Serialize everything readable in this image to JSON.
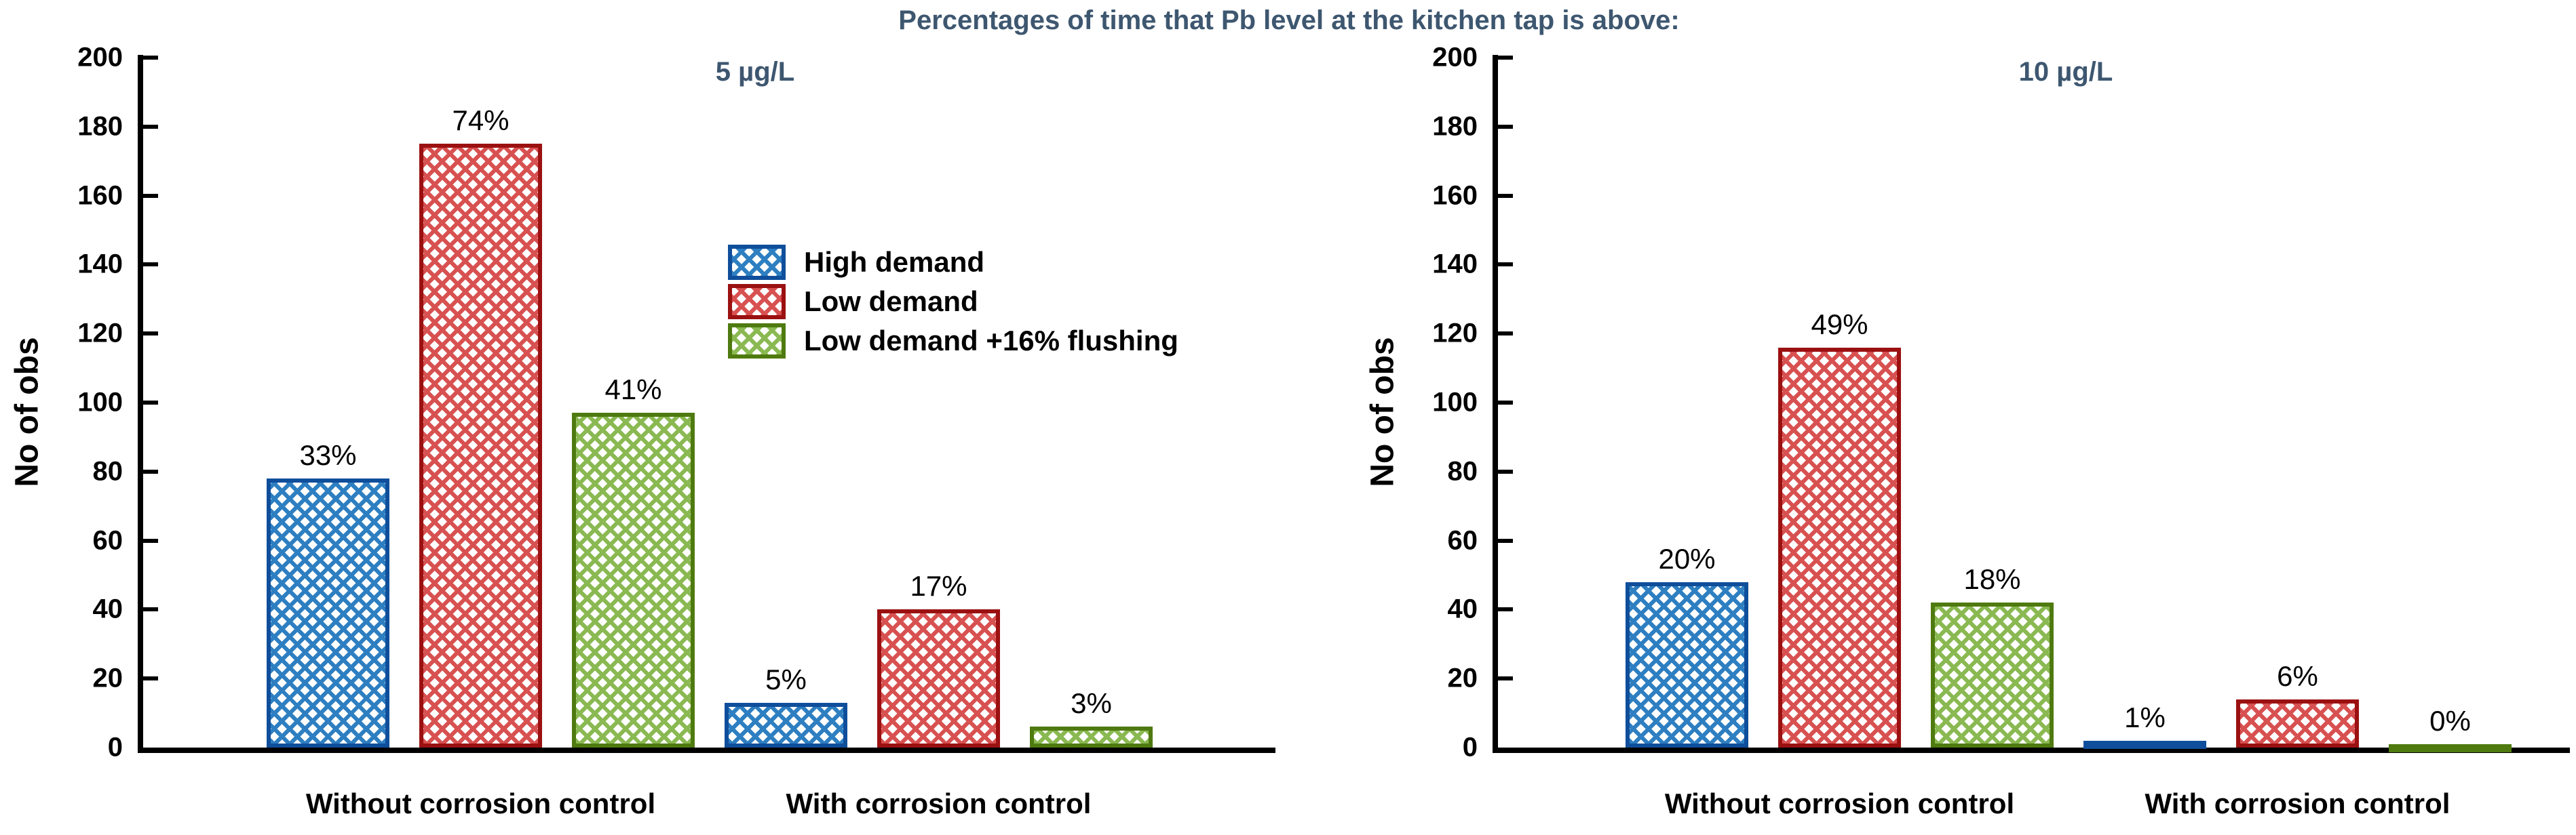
{
  "title": {
    "text": "Percentages of time that Pb level at the kitchen tap is above:",
    "color": "#3e5770"
  },
  "chart_data": [
    {
      "type": "bar",
      "title": "5 µg/L",
      "ylabel": "No of obs",
      "ylim": [
        0,
        200
      ],
      "ytick_step": 20,
      "grid": false,
      "legend_visible": true,
      "legend_position": "upper right inside plot",
      "categories": [
        "Without corrosion control",
        "With corrosion control"
      ],
      "series": [
        {
          "name": "High demand",
          "values": [
            78,
            13
          ],
          "data_labels": [
            "33%",
            "5%"
          ],
          "fill": "#2e7fc1",
          "border": "#0f4e9b"
        },
        {
          "name": "Low demand",
          "values": [
            175,
            40
          ],
          "data_labels": [
            "74%",
            "17%"
          ],
          "fill": "#d85151",
          "border": "#9b1111"
        },
        {
          "name": "Low demand +16% flushing",
          "values": [
            97,
            6
          ],
          "data_labels": [
            "41%",
            "3%"
          ],
          "fill": "#8ab952",
          "border": "#4f7a10"
        }
      ]
    },
    {
      "type": "bar",
      "title": "10 µg/L",
      "ylabel": "No of obs",
      "ylim": [
        0,
        200
      ],
      "ytick_step": 20,
      "grid": false,
      "legend_visible": false,
      "categories": [
        "Without corrosion control",
        "With corrosion control"
      ],
      "series": [
        {
          "name": "High demand",
          "values": [
            48,
            2
          ],
          "data_labels": [
            "20%",
            "1%"
          ],
          "fill": "#2e7fc1",
          "border": "#0f4e9b"
        },
        {
          "name": "Low demand",
          "values": [
            116,
            14
          ],
          "data_labels": [
            "49%",
            "6%"
          ],
          "fill": "#d85151",
          "border": "#9b1111"
        },
        {
          "name": "Low demand +16% flushing",
          "values": [
            42,
            1
          ],
          "data_labels": [
            "18%",
            "0%"
          ],
          "fill": "#8ab952",
          "border": "#4f7a10"
        }
      ]
    }
  ]
}
